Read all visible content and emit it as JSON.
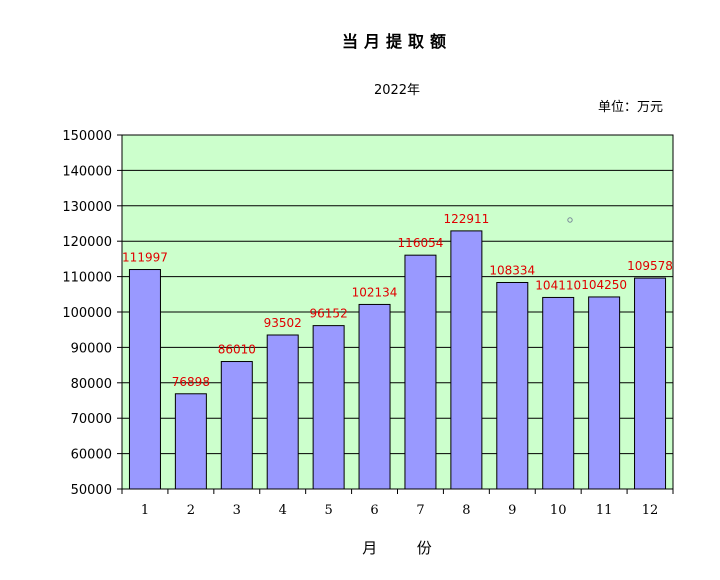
{
  "chart_data": {
    "type": "bar",
    "title": "当月提取额",
    "subtitle": "2022年",
    "unit_label": "单位：万元",
    "xlabel": "月  份",
    "ylabel": "",
    "categories": [
      "1",
      "2",
      "3",
      "4",
      "5",
      "6",
      "7",
      "8",
      "9",
      "10",
      "11",
      "12"
    ],
    "values": [
      111997,
      76898,
      86010,
      93502,
      96152,
      102134,
      116054,
      122911,
      108334,
      104110,
      104250,
      109578
    ],
    "ylim": [
      50000,
      150000
    ],
    "yticks": [
      50000,
      60000,
      70000,
      80000,
      90000,
      100000,
      110000,
      120000,
      130000,
      140000,
      150000
    ],
    "grid": true,
    "colors": {
      "bar": "#9999ff",
      "plot_background": "#ccffcc",
      "data_label": "#e00000"
    }
  }
}
